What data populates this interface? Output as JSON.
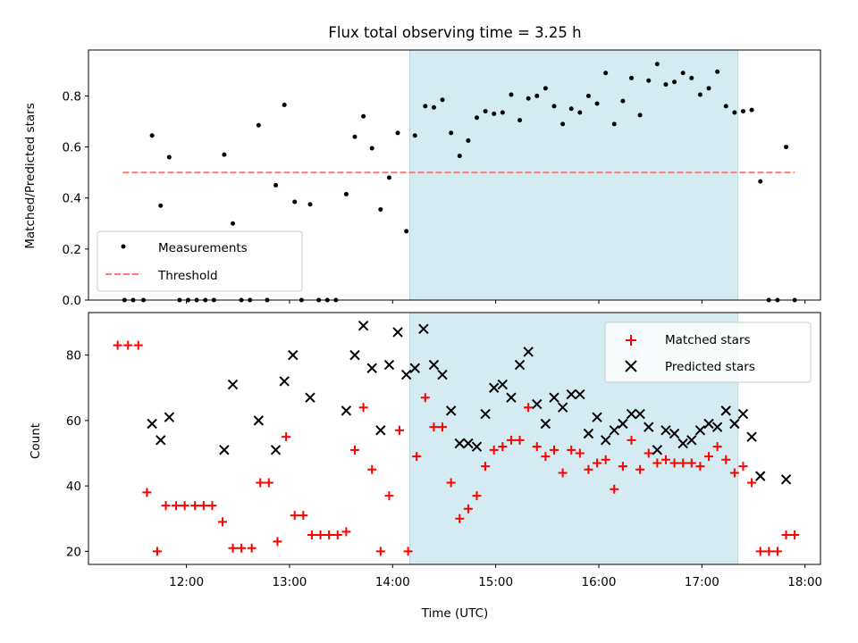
{
  "chart_data": [
    {
      "type": "scatter",
      "panel": "top",
      "title": "Flux total observing time = 3.25 h",
      "xlabel": "",
      "ylabel": "Matched/Predicted stars",
      "ylim": [
        0,
        0.98
      ],
      "y_ticks": [
        "0.0",
        "0.2",
        "0.4",
        "0.6",
        "0.8"
      ],
      "shaded_interval": {
        "start": "14:10",
        "end": "17:21",
        "color": "#d4ebf1"
      },
      "legend_position": "lower-left",
      "series": [
        {
          "name": "Measurements",
          "marker": "dot",
          "color": "#000000",
          "points": [
            [
              "11:24",
              0.0
            ],
            [
              "11:29",
              0.0
            ],
            [
              "11:35",
              0.0
            ],
            [
              "11:40",
              0.645
            ],
            [
              "11:45",
              0.37
            ],
            [
              "11:50",
              0.56
            ],
            [
              "11:56",
              0.0
            ],
            [
              "12:01",
              0.0
            ],
            [
              "12:06",
              0.0
            ],
            [
              "12:11",
              0.0
            ],
            [
              "12:16",
              0.0
            ],
            [
              "12:22",
              0.57
            ],
            [
              "12:27",
              0.3
            ],
            [
              "12:32",
              0.0
            ],
            [
              "12:37",
              0.0
            ],
            [
              "12:42",
              0.685
            ],
            [
              "12:47",
              0.0
            ],
            [
              "12:52",
              0.45
            ],
            [
              "12:57",
              0.765
            ],
            [
              "13:03",
              0.385
            ],
            [
              "13:07",
              0.0
            ],
            [
              "13:12",
              0.375
            ],
            [
              "13:17",
              0.0
            ],
            [
              "13:22",
              0.0
            ],
            [
              "13:27",
              0.0
            ],
            [
              "13:33",
              0.415
            ],
            [
              "13:38",
              0.64
            ],
            [
              "13:43",
              0.72
            ],
            [
              "13:48",
              0.595
            ],
            [
              "13:53",
              0.355
            ],
            [
              "13:58",
              0.48
            ],
            [
              "14:03",
              0.655
            ],
            [
              "14:08",
              0.27
            ],
            [
              "14:13",
              0.645
            ],
            [
              "14:19",
              0.76
            ],
            [
              "14:24",
              0.755
            ],
            [
              "14:29",
              0.785
            ],
            [
              "14:34",
              0.655
            ],
            [
              "14:39",
              0.565
            ],
            [
              "14:44",
              0.625
            ],
            [
              "14:49",
              0.715
            ],
            [
              "14:54",
              0.74
            ],
            [
              "14:59",
              0.73
            ],
            [
              "15:04",
              0.735
            ],
            [
              "15:09",
              0.805
            ],
            [
              "15:14",
              0.705
            ],
            [
              "15:19",
              0.79
            ],
            [
              "15:24",
              0.8
            ],
            [
              "15:29",
              0.83
            ],
            [
              "15:34",
              0.76
            ],
            [
              "15:39",
              0.69
            ],
            [
              "15:44",
              0.75
            ],
            [
              "15:49",
              0.735
            ],
            [
              "15:54",
              0.8
            ],
            [
              "15:59",
              0.77
            ],
            [
              "16:04",
              0.89
            ],
            [
              "16:09",
              0.69
            ],
            [
              "16:14",
              0.78
            ],
            [
              "16:19",
              0.87
            ],
            [
              "16:24",
              0.725
            ],
            [
              "16:29",
              0.86
            ],
            [
              "16:34",
              0.925
            ],
            [
              "16:39",
              0.845
            ],
            [
              "16:44",
              0.855
            ],
            [
              "16:49",
              0.89
            ],
            [
              "16:54",
              0.87
            ],
            [
              "16:59",
              0.805
            ],
            [
              "17:04",
              0.83
            ],
            [
              "17:09",
              0.895
            ],
            [
              "17:14",
              0.76
            ],
            [
              "17:19",
              0.735
            ],
            [
              "17:24",
              0.74
            ],
            [
              "17:29",
              0.745
            ],
            [
              "17:34",
              0.465
            ],
            [
              "17:39",
              0.0
            ],
            [
              "17:44",
              0.0
            ],
            [
              "17:49",
              0.6
            ],
            [
              "17:54",
              0.0
            ]
          ]
        },
        {
          "name": "Threshold",
          "marker": "dashed-line",
          "color": "#ff7b7b",
          "points": [
            [
              "11:23",
              0.5
            ],
            [
              "17:54",
              0.5
            ]
          ]
        }
      ]
    },
    {
      "type": "scatter",
      "panel": "bottom",
      "title": "",
      "xlabel": "Time (UTC)",
      "ylabel": "Count",
      "ylim": [
        16,
        93
      ],
      "x_ticks": [
        "12:00",
        "13:00",
        "14:00",
        "15:00",
        "16:00",
        "17:00",
        "18:00"
      ],
      "y_ticks": [
        "20",
        "40",
        "60",
        "80"
      ],
      "shaded_interval": {
        "start": "14:10",
        "end": "17:21",
        "color": "#d4ebf1"
      },
      "legend_position": "upper-right",
      "series": [
        {
          "name": "Matched stars",
          "marker": "plus",
          "color": "#ff0000",
          "points": [
            [
              "11:20",
              83
            ],
            [
              "11:26",
              83
            ],
            [
              "11:32",
              83
            ],
            [
              "11:37",
              38
            ],
            [
              "11:43",
              20
            ],
            [
              "11:48",
              34
            ],
            [
              "11:54",
              34
            ],
            [
              "11:59",
              34
            ],
            [
              "12:05",
              34
            ],
            [
              "12:10",
              34
            ],
            [
              "12:15",
              34
            ],
            [
              "12:21",
              29
            ],
            [
              "12:27",
              21
            ],
            [
              "12:32",
              21
            ],
            [
              "12:38",
              21
            ],
            [
              "12:43",
              41
            ],
            [
              "12:48",
              41
            ],
            [
              "12:53",
              23
            ],
            [
              "12:58",
              55
            ],
            [
              "13:03",
              31
            ],
            [
              "13:08",
              31
            ],
            [
              "13:13",
              25
            ],
            [
              "13:18",
              25
            ],
            [
              "13:23",
              25
            ],
            [
              "13:28",
              25
            ],
            [
              "13:33",
              26
            ],
            [
              "13:38",
              51
            ],
            [
              "13:43",
              64
            ],
            [
              "13:48",
              45
            ],
            [
              "13:53",
              20
            ],
            [
              "13:58",
              37
            ],
            [
              "14:04",
              57
            ],
            [
              "14:09",
              20
            ],
            [
              "14:14",
              49
            ],
            [
              "14:19",
              67
            ],
            [
              "14:24",
              58
            ],
            [
              "14:29",
              58
            ],
            [
              "14:34",
              41
            ],
            [
              "14:39",
              30
            ],
            [
              "14:44",
              33
            ],
            [
              "14:49",
              37
            ],
            [
              "14:54",
              46
            ],
            [
              "14:59",
              51
            ],
            [
              "15:04",
              52
            ],
            [
              "15:09",
              54
            ],
            [
              "15:14",
              54
            ],
            [
              "15:19",
              64
            ],
            [
              "15:24",
              52
            ],
            [
              "15:29",
              49
            ],
            [
              "15:34",
              51
            ],
            [
              "15:39",
              44
            ],
            [
              "15:44",
              51
            ],
            [
              "15:49",
              50
            ],
            [
              "15:54",
              45
            ],
            [
              "15:59",
              47
            ],
            [
              "16:04",
              48
            ],
            [
              "16:09",
              39
            ],
            [
              "16:14",
              46
            ],
            [
              "16:19",
              54
            ],
            [
              "16:24",
              45
            ],
            [
              "16:29",
              50
            ],
            [
              "16:34",
              47
            ],
            [
              "16:39",
              48
            ],
            [
              "16:44",
              47
            ],
            [
              "16:49",
              47
            ],
            [
              "16:54",
              47
            ],
            [
              "16:59",
              46
            ],
            [
              "17:04",
              49
            ],
            [
              "17:09",
              52
            ],
            [
              "17:14",
              48
            ],
            [
              "17:19",
              44
            ],
            [
              "17:24",
              46
            ],
            [
              "17:29",
              41
            ],
            [
              "17:34",
              20
            ],
            [
              "17:39",
              20
            ],
            [
              "17:44",
              20
            ],
            [
              "17:49",
              25
            ],
            [
              "17:54",
              25
            ]
          ]
        },
        {
          "name": "Predicted stars",
          "marker": "x",
          "color": "#000000",
          "points": [
            [
              "11:40",
              59
            ],
            [
              "11:45",
              54
            ],
            [
              "11:50",
              61
            ],
            [
              "12:22",
              51
            ],
            [
              "12:27",
              71
            ],
            [
              "12:42",
              60
            ],
            [
              "12:52",
              51
            ],
            [
              "12:57",
              72
            ],
            [
              "13:02",
              80
            ],
            [
              "13:12",
              67
            ],
            [
              "13:33",
              63
            ],
            [
              "13:38",
              80
            ],
            [
              "13:43",
              89
            ],
            [
              "13:48",
              76
            ],
            [
              "13:53",
              57
            ],
            [
              "13:58",
              77
            ],
            [
              "14:03",
              87
            ],
            [
              "14:08",
              74
            ],
            [
              "14:13",
              76
            ],
            [
              "14:18",
              88
            ],
            [
              "14:24",
              77
            ],
            [
              "14:29",
              74
            ],
            [
              "14:34",
              63
            ],
            [
              "14:39",
              53
            ],
            [
              "14:44",
              53
            ],
            [
              "14:49",
              52
            ],
            [
              "14:54",
              62
            ],
            [
              "14:59",
              70
            ],
            [
              "15:04",
              71
            ],
            [
              "15:09",
              67
            ],
            [
              "15:14",
              77
            ],
            [
              "15:19",
              81
            ],
            [
              "15:24",
              65
            ],
            [
              "15:29",
              59
            ],
            [
              "15:34",
              67
            ],
            [
              "15:39",
              64
            ],
            [
              "15:44",
              68
            ],
            [
              "15:49",
              68
            ],
            [
              "15:54",
              56
            ],
            [
              "15:59",
              61
            ],
            [
              "16:04",
              54
            ],
            [
              "16:09",
              57
            ],
            [
              "16:14",
              59
            ],
            [
              "16:19",
              62
            ],
            [
              "16:24",
              62
            ],
            [
              "16:29",
              58
            ],
            [
              "16:34",
              51
            ],
            [
              "16:39",
              57
            ],
            [
              "16:44",
              56
            ],
            [
              "16:49",
              53
            ],
            [
              "16:54",
              54
            ],
            [
              "16:59",
              57
            ],
            [
              "17:04",
              59
            ],
            [
              "17:09",
              58
            ],
            [
              "17:14",
              63
            ],
            [
              "17:19",
              59
            ],
            [
              "17:24",
              62
            ],
            [
              "17:29",
              55
            ],
            [
              "17:34",
              43
            ],
            [
              "17:49",
              42
            ]
          ]
        }
      ]
    }
  ]
}
